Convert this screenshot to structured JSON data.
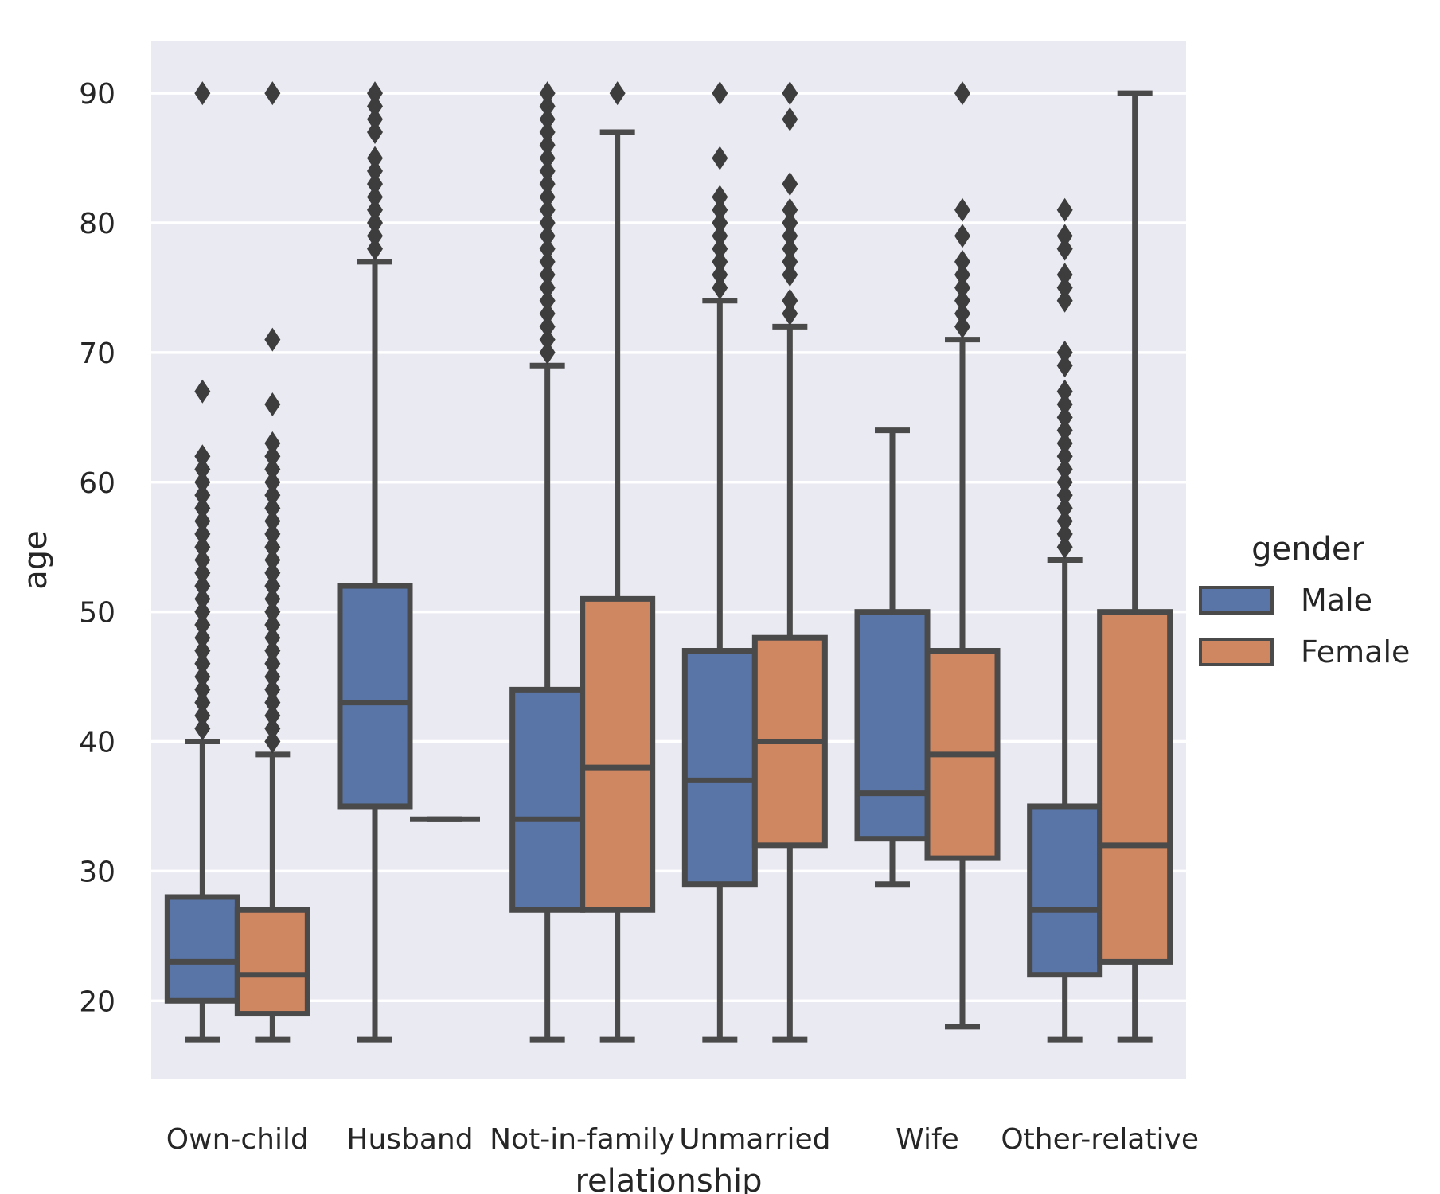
{
  "chart_data": {
    "type": "box",
    "xlabel": "relationship",
    "ylabel": "age",
    "ylim": [
      14,
      94
    ],
    "yticks": [
      20,
      30,
      40,
      50,
      60,
      70,
      80,
      90
    ],
    "grid": true,
    "categories": [
      "Own-child",
      "Husband",
      "Not-in-family",
      "Unmarried",
      "Wife",
      "Other-relative"
    ],
    "legend": {
      "title": "gender",
      "placement": "center-right, outside plot",
      "entries": [
        {
          "name": "Male",
          "color": "#5975a7"
        },
        {
          "name": "Female",
          "color": "#cf8762"
        }
      ]
    },
    "series": [
      {
        "name": "Male",
        "color": "#5975a7",
        "boxes": [
          {
            "category": "Own-child",
            "whislo": 17,
            "q1": 20,
            "med": 23,
            "q3": 28,
            "whishi": 40,
            "fliers": [
              90,
              67,
              62,
              61,
              60,
              59,
              58,
              57,
              56,
              55,
              54,
              53,
              52,
              51,
              50,
              49,
              48,
              47,
              46,
              45,
              44,
              43,
              42,
              41
            ]
          },
          {
            "category": "Husband",
            "whislo": 17,
            "q1": 35,
            "med": 43,
            "q3": 52,
            "whishi": 77,
            "fliers": [
              90,
              89,
              88,
              87,
              85,
              84,
              83,
              82,
              81,
              80,
              79,
              78
            ]
          },
          {
            "category": "Not-in-family",
            "whislo": 17,
            "q1": 27,
            "med": 34,
            "q3": 44,
            "whishi": 69,
            "fliers": [
              90,
              89,
              88,
              87,
              86,
              85,
              84,
              83,
              82,
              81,
              80,
              79,
              78,
              77,
              76,
              75,
              74,
              73,
              72,
              71,
              70
            ]
          },
          {
            "category": "Unmarried",
            "whislo": 17,
            "q1": 29,
            "med": 37,
            "q3": 47,
            "whishi": 74,
            "fliers": [
              90,
              85,
              82,
              81,
              80,
              79,
              78,
              77,
              76,
              75
            ]
          },
          {
            "category": "Wife",
            "whislo": 29,
            "q1": 32.5,
            "med": 36,
            "q3": 50,
            "whishi": 64,
            "fliers": []
          },
          {
            "category": "Other-relative",
            "whislo": 17,
            "q1": 22,
            "med": 27,
            "q3": 35,
            "whishi": 54,
            "fliers": [
              81,
              79,
              78,
              76,
              75,
              74,
              70,
              69,
              67,
              66,
              65,
              64,
              63,
              62,
              61,
              60,
              59,
              58,
              57,
              56,
              55
            ]
          }
        ]
      },
      {
        "name": "Female",
        "color": "#cf8762",
        "boxes": [
          {
            "category": "Own-child",
            "whislo": 17,
            "q1": 19,
            "med": 22,
            "q3": 27,
            "whishi": 39,
            "fliers": [
              90,
              71,
              66,
              63,
              62,
              61,
              60,
              59,
              58,
              57,
              56,
              55,
              54,
              53,
              52,
              51,
              50,
              49,
              48,
              47,
              46,
              45,
              44,
              43,
              42,
              41,
              40
            ]
          },
          {
            "category": "Husband",
            "whislo": 34,
            "q1": 34,
            "med": 34,
            "q3": 34,
            "whishi": 34,
            "fliers": []
          },
          {
            "category": "Not-in-family",
            "whislo": 17,
            "q1": 27,
            "med": 38,
            "q3": 51,
            "whishi": 87,
            "fliers": [
              90
            ]
          },
          {
            "category": "Unmarried",
            "whislo": 17,
            "q1": 32,
            "med": 40,
            "q3": 48,
            "whishi": 72,
            "fliers": [
              90,
              88,
              83,
              81,
              80,
              79,
              78,
              77,
              76,
              74,
              73
            ]
          },
          {
            "category": "Wife",
            "whislo": 18,
            "q1": 31,
            "med": 39,
            "q3": 47,
            "whishi": 71,
            "fliers": [
              90,
              81,
              79,
              77,
              76,
              75,
              74,
              73,
              72
            ]
          },
          {
            "category": "Other-relative",
            "whislo": 17,
            "q1": 23,
            "med": 32,
            "q3": 50,
            "whishi": 90,
            "fliers": []
          }
        ]
      }
    ]
  }
}
